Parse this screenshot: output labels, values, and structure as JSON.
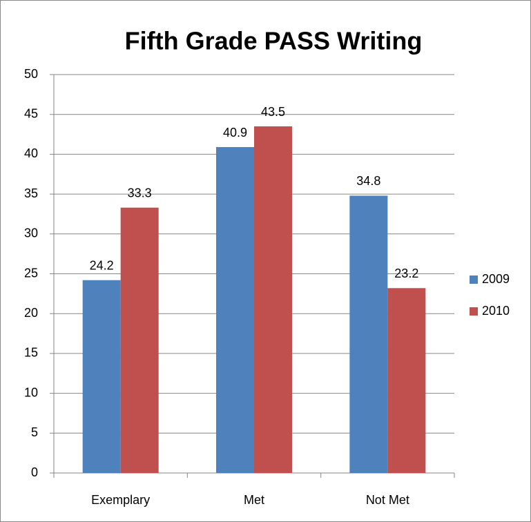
{
  "chart_data": {
    "type": "bar",
    "title": "Fifth Grade PASS Writing",
    "categories": [
      "Exemplary",
      "Met",
      "Not Met"
    ],
    "series": [
      {
        "name": "2009",
        "color": "#4f81bd",
        "values": [
          24.2,
          40.9,
          34.8
        ]
      },
      {
        "name": "2010",
        "color": "#c0504d",
        "values": [
          33.3,
          43.5,
          23.2
        ]
      }
    ],
    "ylim": [
      0,
      50
    ],
    "yticks": [
      0,
      5,
      10,
      15,
      20,
      25,
      30,
      35,
      40,
      45,
      50
    ],
    "grid": true,
    "legend": "right"
  }
}
